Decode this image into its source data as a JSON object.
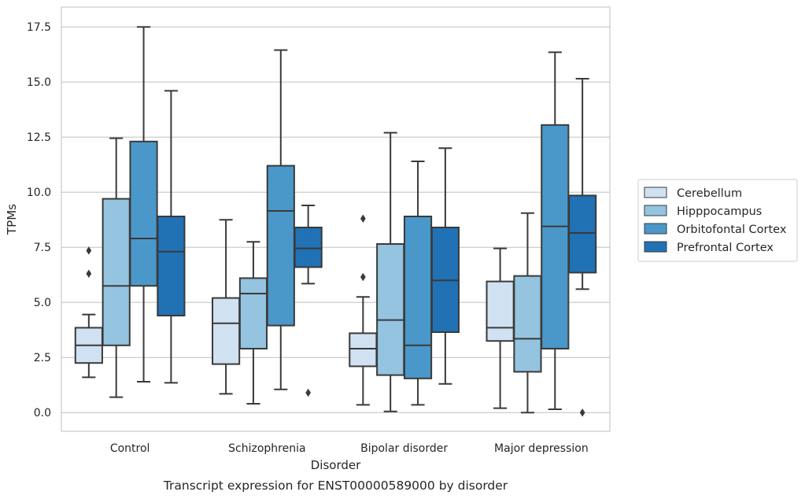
{
  "chart_data": {
    "type": "box",
    "caption": "Transcript expression for ENST00000589000 by disorder",
    "xlabel": "Disorder",
    "ylabel": "TPMs",
    "ylim": [
      -0.85,
      18.4
    ],
    "yticks": [
      "0.0",
      "2.5",
      "5.0",
      "7.5",
      "10.0",
      "12.5",
      "15.0",
      "17.5"
    ],
    "ytick_values": [
      0,
      2.5,
      5,
      7.5,
      10,
      12.5,
      15,
      17.5
    ],
    "grid": "horizontal",
    "legend_position": "right",
    "categories": [
      "Control",
      "Schizophrenia",
      "Bipolar disorder",
      "Major depression"
    ],
    "series": [
      {
        "name": "Cerebellum",
        "color": "#d0e1f2",
        "boxes": [
          {
            "whislo": 1.6,
            "q1": 2.25,
            "med": 3.05,
            "q3": 3.85,
            "whishi": 4.45,
            "fliers": [
              6.3,
              7.35
            ]
          },
          {
            "whislo": 0.85,
            "q1": 2.2,
            "med": 4.05,
            "q3": 5.2,
            "whishi": 8.75,
            "fliers": []
          },
          {
            "whislo": 0.35,
            "q1": 2.1,
            "med": 2.9,
            "q3": 3.6,
            "whishi": 5.25,
            "fliers": [
              6.15,
              8.8
            ]
          },
          {
            "whislo": 0.2,
            "q1": 3.25,
            "med": 3.85,
            "q3": 5.95,
            "whishi": 7.45,
            "fliers": []
          }
        ]
      },
      {
        "name": "Hipppocampus",
        "color": "#94c4df",
        "boxes": [
          {
            "whislo": 0.7,
            "q1": 3.05,
            "med": 5.75,
            "q3": 9.7,
            "whishi": 12.45,
            "fliers": []
          },
          {
            "whislo": 0.4,
            "q1": 2.9,
            "med": 5.4,
            "q3": 6.1,
            "whishi": 7.75,
            "fliers": []
          },
          {
            "whislo": 0.05,
            "q1": 1.7,
            "med": 4.2,
            "q3": 7.65,
            "whishi": 12.7,
            "fliers": []
          },
          {
            "whislo": 0.0,
            "q1": 1.85,
            "med": 3.35,
            "q3": 6.2,
            "whishi": 9.05,
            "fliers": []
          }
        ]
      },
      {
        "name": "Orbitofontal Cortex",
        "color": "#4a98c9",
        "boxes": [
          {
            "whislo": 1.4,
            "q1": 5.75,
            "med": 7.9,
            "q3": 12.3,
            "whishi": 17.5,
            "fliers": []
          },
          {
            "whislo": 1.05,
            "q1": 3.95,
            "med": 9.15,
            "q3": 11.2,
            "whishi": 16.45,
            "fliers": []
          },
          {
            "whislo": 0.35,
            "q1": 1.55,
            "med": 3.05,
            "q3": 8.9,
            "whishi": 11.4,
            "fliers": []
          },
          {
            "whislo": 0.15,
            "q1": 2.9,
            "med": 8.45,
            "q3": 13.05,
            "whishi": 16.35,
            "fliers": []
          }
        ]
      },
      {
        "name": "Prefrontal Cortex",
        "color": "#2171b5",
        "boxes": [
          {
            "whislo": 1.35,
            "q1": 4.4,
            "med": 7.3,
            "q3": 8.9,
            "whishi": 14.6,
            "fliers": []
          },
          {
            "whislo": 5.85,
            "q1": 6.6,
            "med": 7.45,
            "q3": 8.4,
            "whishi": 9.4,
            "fliers": [
              0.9
            ]
          },
          {
            "whislo": 1.3,
            "q1": 3.65,
            "med": 6.0,
            "q3": 8.4,
            "whishi": 12.0,
            "fliers": []
          },
          {
            "whislo": 5.6,
            "q1": 6.35,
            "med": 8.15,
            "q3": 9.85,
            "whishi": 15.15,
            "fliers": [
              0.0
            ]
          }
        ]
      }
    ]
  }
}
